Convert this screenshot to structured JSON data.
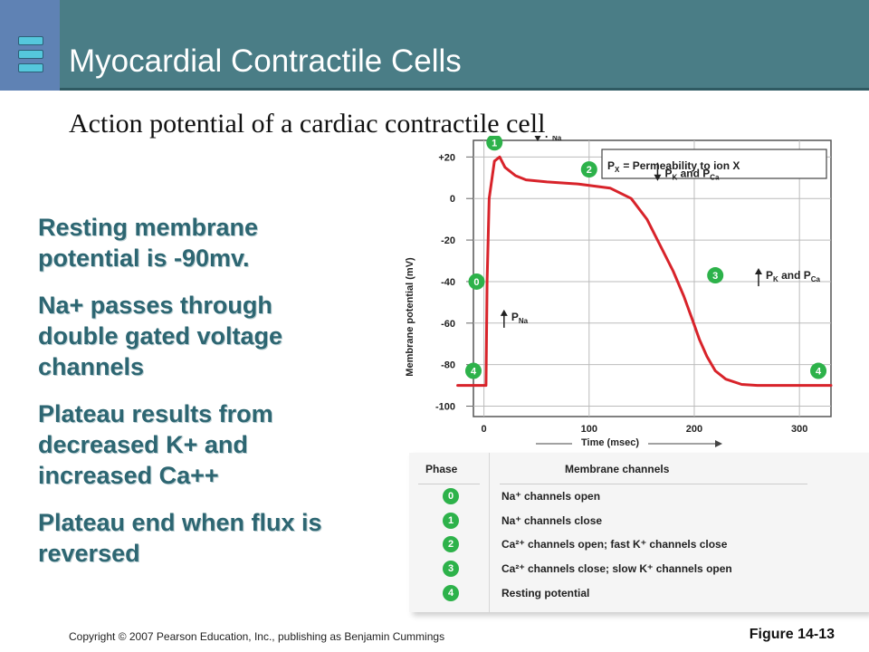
{
  "header": {
    "title": "Myocardial Contractile Cells",
    "accent_color": "#4a7d86",
    "logo_color": "#5f82b4"
  },
  "subtitle": "Action potential of a cardiac contractile cell",
  "bullets": [
    "Resting membrane potential is -90mv.",
    "Na+ passes through double gated voltage channels",
    "Plateau results from decreased K+ and increased Ca++",
    "Plateau end when flux is reversed"
  ],
  "chart_data": {
    "type": "line",
    "xlabel": "Time (msec)",
    "ylabel": "Membrane potential (mV)",
    "xlim": [
      -10,
      330
    ],
    "ylim": [
      -105,
      28
    ],
    "x_ticks": [
      "0",
      "100",
      "200",
      "300"
    ],
    "x_tick_values": [
      0,
      100,
      200,
      300
    ],
    "y_ticks": [
      "+20",
      "0",
      "-20",
      "-40",
      "-60",
      "-80",
      "-100"
    ],
    "y_tick_values": [
      20,
      0,
      -20,
      -40,
      -60,
      -80,
      -100
    ],
    "line_color": "#d8232a",
    "series": [
      {
        "x": [
          -25,
          2,
          3,
          5,
          10,
          15,
          20,
          30,
          40,
          60,
          90,
          120,
          140,
          155,
          170,
          180,
          190,
          198,
          205,
          212,
          220,
          230,
          245,
          260,
          280,
          300,
          330
        ],
        "y": [
          -90,
          -90,
          -40,
          0,
          18,
          20,
          15,
          11,
          9,
          8,
          7,
          5,
          0,
          -10,
          -25,
          -35,
          -47,
          -58,
          -68,
          -76,
          -83,
          -87,
          -89.5,
          -90,
          -90,
          -90,
          -90
        ]
      }
    ],
    "legend_box": {
      "prefix": "P",
      "subscript": "X",
      "text": "=  Permeability to ion X"
    },
    "phase_markers": [
      {
        "label": "0",
        "x": -7,
        "y": -40
      },
      {
        "label": "1",
        "x": 10,
        "y": 27
      },
      {
        "label": "2",
        "x": 100,
        "y": 14
      },
      {
        "label": "3",
        "x": 220,
        "y": -37
      },
      {
        "label": "4",
        "x": -10,
        "y": -83
      },
      {
        "label": "4",
        "x": 318,
        "y": -83
      }
    ],
    "annotations": [
      {
        "id": "pna_down",
        "arrow": "down",
        "text": "P",
        "sub": "Na",
        "x": 58,
        "y": 31
      },
      {
        "id": "pk_pca_down",
        "arrow": "down",
        "text": "P",
        "sub": "K",
        "mid": " and  P",
        "sub2": "Ca",
        "x": 172,
        "y": 12
      },
      {
        "id": "pna_up",
        "arrow": "up",
        "text": "P",
        "sub": "Na",
        "x": 26,
        "y": -57
      },
      {
        "id": "pk_pca_up",
        "arrow": "up",
        "text": "P",
        "sub": "K",
        "mid": " and  P",
        "sub2": "Ca",
        "x": 268,
        "y": -37
      }
    ],
    "marker_color": "#2db24a"
  },
  "table": {
    "headers": [
      "Phase",
      "Membrane channels"
    ],
    "rows": [
      {
        "phase": "0",
        "text": "Na⁺ channels open"
      },
      {
        "phase": "1",
        "text": "Na⁺ channels close"
      },
      {
        "phase": "2",
        "text": "Ca²⁺ channels open; fast K⁺ channels close"
      },
      {
        "phase": "3",
        "text": "Ca²⁺ channels close; slow K⁺ channels open"
      },
      {
        "phase": "4",
        "text": "Resting potential"
      }
    ]
  },
  "footer": {
    "copyright": "Copyright © 2007 Pearson Education, Inc., publishing as Benjamin Cummings",
    "figure": "Figure 14-13"
  }
}
